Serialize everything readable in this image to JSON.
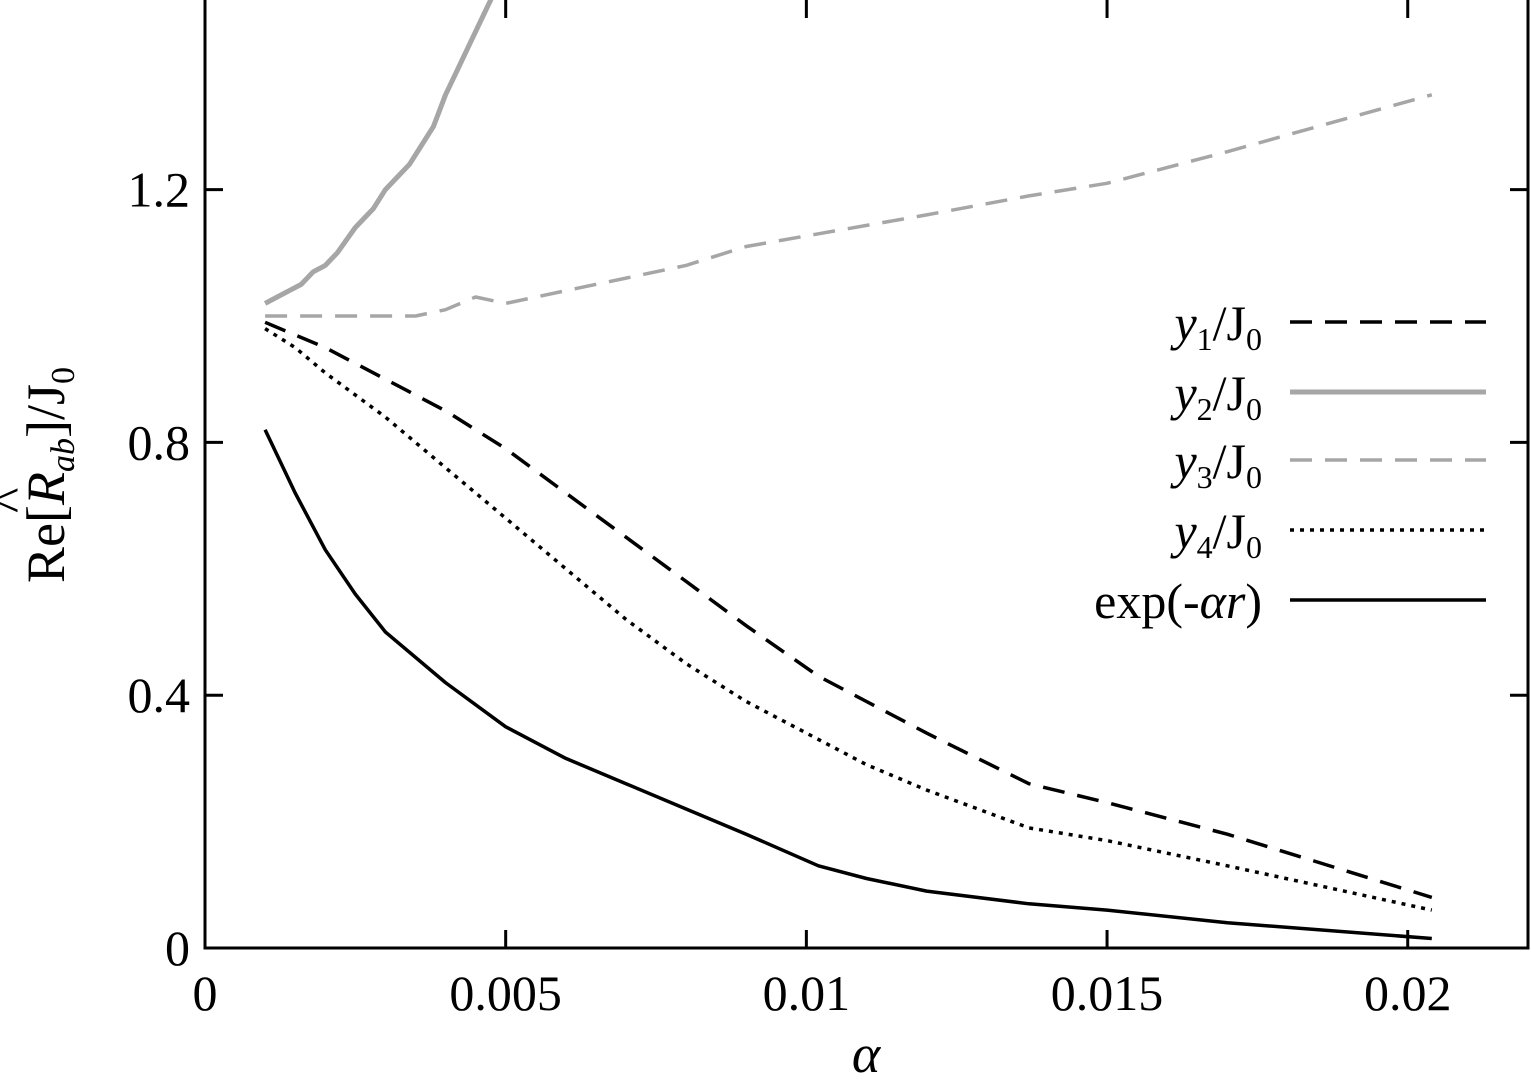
{
  "chart_data": {
    "type": "line",
    "xlabel": "α",
    "ylabel": {
      "prefix": "Re[",
      "symbol": "R",
      "hat": "^",
      "subscript": "ab",
      "suffix": "]/J",
      "suffix_sub": "0"
    },
    "xlim": [
      0,
      0.022
    ],
    "ylim": [
      0,
      1.5
    ],
    "x_ticks": [
      0,
      0.005,
      0.01,
      0.015,
      0.02
    ],
    "x_tick_labels": [
      "0",
      "0.005",
      "0.01",
      "0.015",
      "0.02"
    ],
    "y_ticks": [
      0,
      0.4,
      0.8,
      1.2
    ],
    "y_tick_labels": [
      "0",
      "0.4",
      "0.8",
      "1.2"
    ],
    "grid": false,
    "legend_position": "right",
    "series": [
      {
        "name": "y1/J0",
        "legend": {
          "italic": "y",
          "sub": "1",
          "rest": "/J",
          "sub2": "0"
        },
        "color": "#000000",
        "style": "dashed",
        "x": [
          0.001,
          0.0015,
          0.002,
          0.003,
          0.004,
          0.005,
          0.006,
          0.007,
          0.008,
          0.009,
          0.0102,
          0.011,
          0.012,
          0.0137,
          0.015,
          0.017,
          0.0204
        ],
        "y": [
          0.99,
          0.97,
          0.95,
          0.9,
          0.85,
          0.79,
          0.72,
          0.65,
          0.58,
          0.51,
          0.43,
          0.39,
          0.34,
          0.26,
          0.23,
          0.18,
          0.08
        ]
      },
      {
        "name": "y2/J0",
        "legend": {
          "italic": "y",
          "sub": "2",
          "rest": "/J",
          "sub2": "0"
        },
        "color": "#a6a6a6",
        "style": "solid",
        "x": [
          0.001,
          0.0012,
          0.0014,
          0.0016,
          0.0018,
          0.002,
          0.0022,
          0.0025,
          0.0028,
          0.003,
          0.0032,
          0.0034,
          0.0036,
          0.0038,
          0.004,
          0.0042,
          0.0044,
          0.0046,
          0.0048
        ],
        "y": [
          1.02,
          1.03,
          1.04,
          1.05,
          1.07,
          1.08,
          1.1,
          1.14,
          1.17,
          1.2,
          1.22,
          1.24,
          1.27,
          1.3,
          1.35,
          1.39,
          1.43,
          1.47,
          1.51
        ]
      },
      {
        "name": "y3/J0",
        "legend": {
          "italic": "y",
          "sub": "3",
          "rest": "/J",
          "sub2": "0"
        },
        "color": "#a6a6a6",
        "style": "dashed",
        "x": [
          0.001,
          0.0015,
          0.002,
          0.0025,
          0.003,
          0.0035,
          0.004,
          0.0045,
          0.005,
          0.006,
          0.007,
          0.008,
          0.009,
          0.0102,
          0.012,
          0.0137,
          0.015,
          0.017,
          0.0204
        ],
        "y": [
          1.0,
          1.0,
          1.0,
          1.0,
          1.0,
          1.0,
          1.01,
          1.03,
          1.02,
          1.04,
          1.06,
          1.08,
          1.11,
          1.13,
          1.16,
          1.19,
          1.21,
          1.26,
          1.35
        ]
      },
      {
        "name": "y4/J0",
        "legend": {
          "italic": "y",
          "sub": "4",
          "rest": "/J",
          "sub2": "0"
        },
        "color": "#000000",
        "style": "dotted",
        "x": [
          0.001,
          0.0015,
          0.002,
          0.003,
          0.004,
          0.005,
          0.006,
          0.007,
          0.008,
          0.009,
          0.0102,
          0.011,
          0.012,
          0.0137,
          0.015,
          0.017,
          0.0204
        ],
        "y": [
          0.98,
          0.95,
          0.91,
          0.84,
          0.76,
          0.68,
          0.6,
          0.52,
          0.45,
          0.39,
          0.33,
          0.29,
          0.25,
          0.19,
          0.17,
          0.13,
          0.06
        ]
      },
      {
        "name": "exp(-αr)",
        "legend": {
          "italic": "",
          "sub": "",
          "rest": "exp(-",
          "italic2": "αr",
          "end": ")"
        },
        "color": "#000000",
        "style": "solid",
        "x": [
          0.001,
          0.0015,
          0.002,
          0.0025,
          0.003,
          0.004,
          0.005,
          0.006,
          0.007,
          0.008,
          0.009,
          0.0102,
          0.011,
          0.012,
          0.0137,
          0.015,
          0.017,
          0.0204
        ],
        "y": [
          0.82,
          0.72,
          0.63,
          0.56,
          0.5,
          0.42,
          0.35,
          0.3,
          0.26,
          0.22,
          0.18,
          0.13,
          0.11,
          0.09,
          0.07,
          0.06,
          0.04,
          0.015
        ]
      }
    ]
  }
}
